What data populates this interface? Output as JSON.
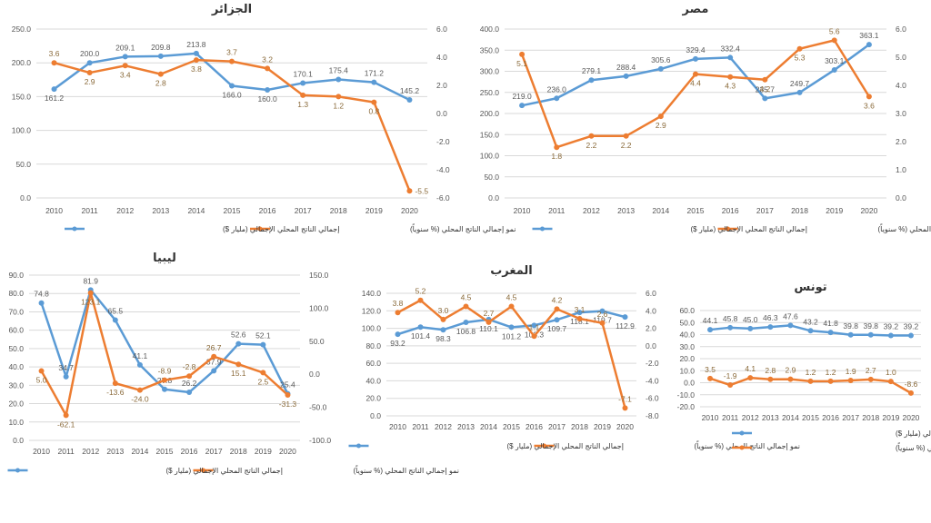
{
  "colors": {
    "gdp": "#5b9bd5",
    "growth": "#ed7d31",
    "grid": "#d9d9d9",
    "text": "#595959"
  },
  "legend": {
    "gdp": "إجمالي الناتج المحلي الإجمالي (مليار $)",
    "growth": "نمو إجمالي الناتج المحلي (% سنوياً)"
  },
  "chart_data": [
    {
      "id": "algeria",
      "type": "line",
      "title": "الجزائر",
      "categories": [
        "2010",
        "2011",
        "2012",
        "2013",
        "2014",
        "2015",
        "2016",
        "2017",
        "2018",
        "2019",
        "2020"
      ],
      "series": [
        {
          "name": "إجمالي الناتج المحلي الإجمالي (مليار $)",
          "axis": "left",
          "values": [
            161.2,
            200.0,
            209.1,
            209.8,
            213.8,
            166.0,
            160.0,
            170.1,
            175.4,
            171.2,
            145.2
          ]
        },
        {
          "name": "نمو إجمالي الناتج المحلي (% سنوياً)",
          "axis": "right",
          "values": [
            3.6,
            2.9,
            3.4,
            2.8,
            3.8,
            3.7,
            3.2,
            1.3,
            1.2,
            0.8,
            -5.5
          ]
        }
      ],
      "ylim_left": [
        0,
        250
      ],
      "yticks_left": [
        "0.0",
        "50.0",
        "100.0",
        "150.0",
        "200.0",
        "250.0"
      ],
      "ylim_right": [
        -6,
        6
      ],
      "yticks_right": [
        "-6.0",
        "-4.0",
        "-2.0",
        "0.0",
        "2.0",
        "4.0",
        "6.0"
      ],
      "grid": true,
      "legend": "bottom"
    },
    {
      "id": "egypt",
      "type": "line",
      "title": "مصر",
      "categories": [
        "2010",
        "2011",
        "2012",
        "2013",
        "2014",
        "2015",
        "2016",
        "2017",
        "2018",
        "2019",
        "2020"
      ],
      "series": [
        {
          "name": "إجمالي الناتج المحلي الإجمالي (مليار $)",
          "axis": "left",
          "values": [
            219.0,
            236.0,
            279.1,
            288.4,
            305.6,
            329.4,
            332.4,
            235.7,
            249.7,
            303.1,
            363.1
          ]
        },
        {
          "name": "نمو إجمالي الناتج المحلي (% سنوياً)",
          "axis": "right",
          "values": [
            5.1,
            1.8,
            2.2,
            2.2,
            2.9,
            4.4,
            4.3,
            4.2,
            5.3,
            5.6,
            3.6
          ]
        }
      ],
      "ylim_left": [
        0,
        400
      ],
      "yticks_left": [
        "0.0",
        "50.0",
        "100.0",
        "150.0",
        "200.0",
        "250.0",
        "300.0",
        "350.0",
        "400.0"
      ],
      "ylim_right": [
        0,
        6
      ],
      "yticks_right": [
        "0.0",
        "1.0",
        "2.0",
        "3.0",
        "4.0",
        "5.0",
        "6.0"
      ],
      "grid": true,
      "legend": "bottom"
    },
    {
      "id": "libya",
      "type": "line",
      "title": "ليبيا",
      "categories": [
        "2010",
        "2011",
        "2012",
        "2013",
        "2014",
        "2015",
        "2016",
        "2017",
        "2018",
        "2019",
        "2020"
      ],
      "series": [
        {
          "name": "إجمالي الناتج المحلي الإجمالي (مليار $)",
          "axis": "left",
          "values": [
            74.8,
            34.7,
            81.9,
            65.5,
            41.1,
            27.8,
            26.2,
            37.9,
            52.6,
            52.1,
            25.4
          ]
        },
        {
          "name": "نمو إجمالي الناتج المحلي (% سنوياً)",
          "axis": "right",
          "values": [
            5.0,
            -62.1,
            123.1,
            -13.6,
            -24.0,
            -8.9,
            -2.8,
            26.7,
            15.1,
            2.5,
            -31.3
          ]
        }
      ],
      "ylim_left": [
        0,
        90
      ],
      "yticks_left": [
        "0.0",
        "10.0",
        "20.0",
        "30.0",
        "40.0",
        "50.0",
        "60.0",
        "70.0",
        "80.0",
        "90.0"
      ],
      "ylim_right": [
        -100,
        150
      ],
      "yticks_right": [
        "-100.0",
        "-50.0",
        "0.0",
        "50.0",
        "100.0",
        "150.0"
      ],
      "grid": true,
      "legend": "bottom"
    },
    {
      "id": "morocco",
      "type": "line",
      "title": "المغرب",
      "categories": [
        "2010",
        "2011",
        "2012",
        "2013",
        "2014",
        "2015",
        "2016",
        "2017",
        "2018",
        "2019",
        "2020"
      ],
      "series": [
        {
          "name": "إجمالي الناتج المحلي الإجمالي (مليار $)",
          "axis": "left",
          "values": [
            93.2,
            101.4,
            98.3,
            106.8,
            110.1,
            101.2,
            103.3,
            109.7,
            118.1,
            119.7,
            112.9
          ]
        },
        {
          "name": "نمو إجمالي الناتج المحلي (% سنوياً)",
          "axis": "right",
          "values": [
            3.8,
            5.2,
            3.0,
            4.5,
            2.7,
            4.5,
            1.1,
            4.2,
            3.1,
            2.6,
            -7.1
          ]
        }
      ],
      "ylim_left": [
        0,
        140
      ],
      "yticks_left": [
        "0.0",
        "20.0",
        "40.0",
        "60.0",
        "80.0",
        "100.0",
        "120.0",
        "140.0"
      ],
      "ylim_right": [
        -8,
        6
      ],
      "yticks_right": [
        "-8.0",
        "-6.0",
        "-4.0",
        "-2.0",
        "0.0",
        "2.0",
        "4.0",
        "6.0"
      ],
      "grid": true,
      "legend": "bottom"
    },
    {
      "id": "tunisia",
      "type": "line",
      "title": "تونس",
      "categories": [
        "2010",
        "2011",
        "2012",
        "2013",
        "2014",
        "2015",
        "2016",
        "2017",
        "2018",
        "2019",
        "2020"
      ],
      "series": [
        {
          "name": "إجمالي الناتج المحلي الإجمالي (مليار $)",
          "axis": "left",
          "values": [
            44.1,
            45.8,
            45.0,
            46.3,
            47.6,
            43.2,
            41.8,
            39.8,
            39.8,
            39.2,
            39.2
          ]
        },
        {
          "name": "نمو إجمالي الناتج المحلي (% سنوياً)",
          "axis": "left",
          "values": [
            3.5,
            -1.9,
            4.1,
            2.8,
            2.9,
            1.2,
            1.2,
            1.9,
            2.7,
            1.0,
            -8.6
          ]
        }
      ],
      "ylim_left": [
        -20,
        60
      ],
      "yticks_left": [
        "-20.0",
        "-10.0",
        "0.0",
        "10.0",
        "20.0",
        "30.0",
        "40.0",
        "50.0",
        "60.0"
      ],
      "grid": true,
      "legend": "bottom-stacked"
    }
  ]
}
